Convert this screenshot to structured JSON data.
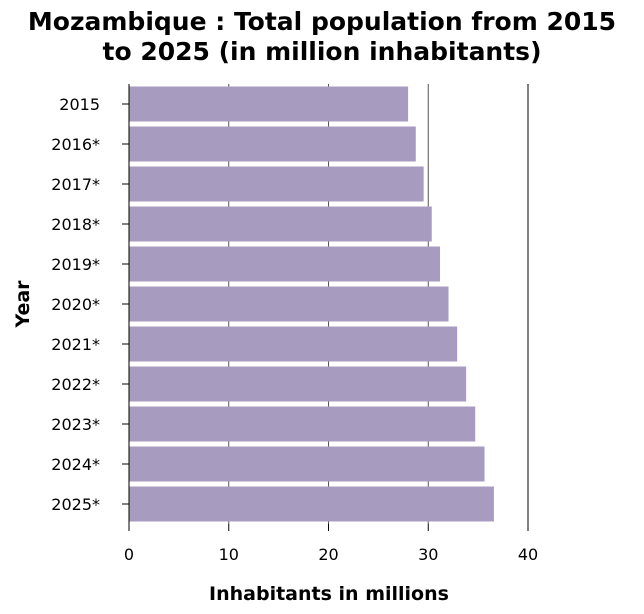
{
  "chart_data": {
    "type": "bar",
    "orientation": "horizontal",
    "title": "Mozambique : Total population from 2015 to 2025 (in million inhabitants)",
    "title_lines": [
      "Mozambique : Total population from 2015",
      "to 2025 (in million inhabitants)"
    ],
    "xlabel": "Inhabitants in millions",
    "ylabel": "Year",
    "categories": [
      "2015",
      "2016*",
      "2017*",
      "2018*",
      "2019*",
      "2020*",
      "2021*",
      "2022*",
      "2023*",
      "2024*",
      "2025*"
    ],
    "values": [
      27.98,
      28.75,
      29.54,
      30.35,
      31.18,
      32.03,
      32.9,
      33.8,
      34.71,
      35.64,
      36.58
    ],
    "xlim": [
      0,
      40
    ],
    "xticks": [
      "0",
      "10",
      "20",
      "30",
      "40"
    ],
    "grid": "vertical",
    "bar_color": "#a89bc0"
  }
}
